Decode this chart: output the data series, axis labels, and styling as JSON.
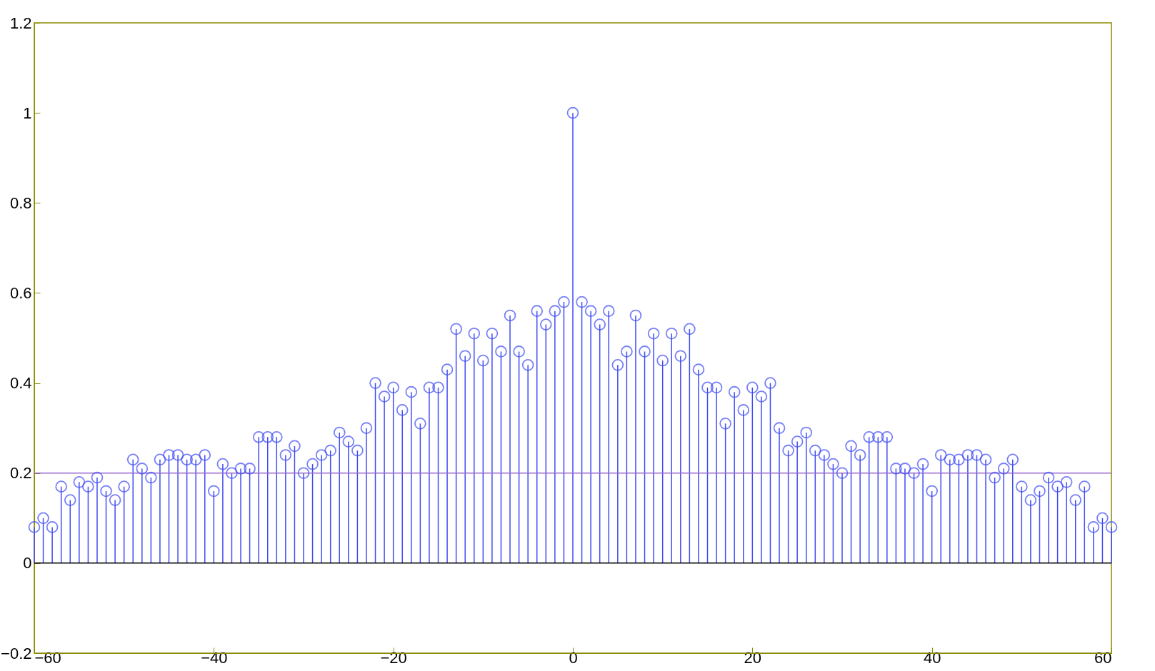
{
  "chart_data": {
    "type": "lollipop",
    "x": [
      -60,
      -59,
      -58,
      -57,
      -56,
      -55,
      -54,
      -53,
      -52,
      -51,
      -50,
      -49,
      -48,
      -47,
      -46,
      -45,
      -44,
      -43,
      -42,
      -41,
      -40,
      -39,
      -38,
      -37,
      -36,
      -35,
      -34,
      -33,
      -32,
      -31,
      -30,
      -29,
      -28,
      -27,
      -26,
      -25,
      -24,
      -23,
      -22,
      -21,
      -20,
      -19,
      -18,
      -17,
      -16,
      -15,
      -14,
      -13,
      -12,
      -11,
      -10,
      -9,
      -8,
      -7,
      -6,
      -5,
      -4,
      -3,
      -2,
      -1,
      0,
      1,
      2,
      3,
      4,
      5,
      6,
      7,
      8,
      9,
      10,
      11,
      12,
      13,
      14,
      15,
      16,
      17,
      18,
      19,
      20,
      21,
      22,
      23,
      24,
      25,
      26,
      27,
      28,
      29,
      30,
      31,
      32,
      33,
      34,
      35,
      36,
      37,
      38,
      39,
      40,
      41,
      42,
      43,
      44,
      45,
      46,
      47,
      48,
      49,
      50,
      51,
      52,
      53,
      54,
      55,
      56,
      57,
      58,
      59,
      60
    ],
    "series": [
      {
        "color": "#3f4cf5",
        "values": [
          0.08,
          0.1,
          0.08,
          0.17,
          0.14,
          0.18,
          0.17,
          0.19,
          0.16,
          0.14,
          0.17,
          0.23,
          0.21,
          0.19,
          0.23,
          0.24,
          0.24,
          0.23,
          0.23,
          0.24,
          0.16,
          0.22,
          0.2,
          0.21,
          0.21,
          0.28,
          0.28,
          0.28,
          0.24,
          0.26,
          0.2,
          0.22,
          0.24,
          0.25,
          0.29,
          0.27,
          0.25,
          0.3,
          0.4,
          0.37,
          0.39,
          0.34,
          0.38,
          0.31,
          0.39,
          0.39,
          0.43,
          0.52,
          0.46,
          0.51,
          0.45,
          0.51,
          0.47,
          0.55,
          0.47,
          0.44,
          0.56,
          0.53,
          0.56,
          0.58,
          1.0,
          0.58,
          0.56,
          0.53,
          0.56,
          0.44,
          0.47,
          0.55,
          0.47,
          0.51,
          0.45,
          0.51,
          0.46,
          0.52,
          0.43,
          0.39,
          0.39,
          0.31,
          0.38,
          0.34,
          0.39,
          0.37,
          0.4,
          0.3,
          0.25,
          0.27,
          0.29,
          0.25,
          0.24,
          0.22,
          0.2,
          0.26,
          0.24,
          0.28,
          0.28,
          0.28,
          0.21,
          0.21,
          0.2,
          0.22,
          0.16,
          0.24,
          0.23,
          0.23,
          0.24,
          0.24,
          0.23,
          0.19,
          0.21,
          0.23,
          0.17,
          0.14,
          0.16,
          0.19,
          0.17,
          0.18,
          0.14,
          0.17,
          0.08,
          0.1,
          0.08
        ]
      }
    ],
    "xlim": [
      -60,
      60
    ],
    "xticks": [
      -60,
      -40,
      -20,
      0,
      20,
      40,
      60
    ],
    "ylim": [
      -0.2,
      1.2
    ],
    "yticks": [
      -0.2,
      0,
      0.2,
      0.4,
      0.6,
      0.8,
      1,
      1.2
    ],
    "marker": "circle",
    "grid": false,
    "ref_lines": [
      {
        "axis": "y",
        "value": 0,
        "color": "#000000"
      },
      {
        "axis": "y",
        "value": 0.2,
        "color": "#9a6ad0"
      }
    ]
  }
}
